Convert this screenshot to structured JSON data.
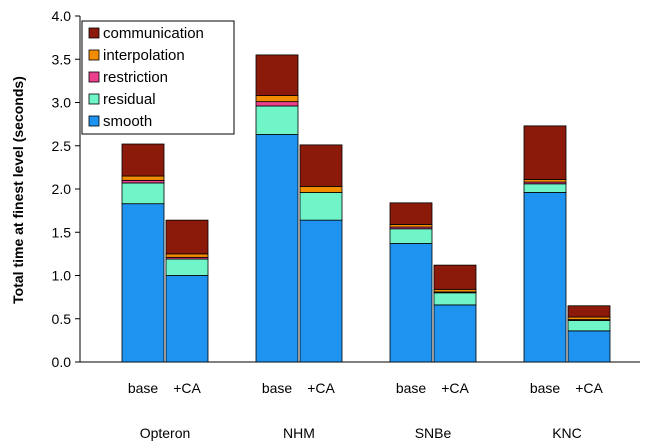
{
  "chart_data": {
    "type": "bar",
    "stacked": true,
    "ylabel": "Total time at finest level (seconds)",
    "ylim": [
      0,
      4.0
    ],
    "yticks": [
      "0.0",
      "0.5",
      "1.0",
      "1.5",
      "2.0",
      "2.5",
      "3.0",
      "3.5",
      "4.0"
    ],
    "groups": [
      {
        "name": "Opteron",
        "bars": [
          {
            "label": "base",
            "values": {
              "smooth": 1.83,
              "residual": 0.24,
              "restriction": 0.03,
              "interpolation": 0.05,
              "communication": 0.37
            }
          },
          {
            "label": "+CA",
            "values": {
              "smooth": 1.0,
              "residual": 0.19,
              "restriction": 0.02,
              "interpolation": 0.04,
              "communication": 0.39
            }
          }
        ]
      },
      {
        "name": "NHM",
        "bars": [
          {
            "label": "base",
            "values": {
              "smooth": 2.63,
              "residual": 0.33,
              "restriction": 0.05,
              "interpolation": 0.07,
              "communication": 0.47
            }
          },
          {
            "label": "+CA",
            "values": {
              "smooth": 1.64,
              "residual": 0.32,
              "restriction": 0.0,
              "interpolation": 0.07,
              "communication": 0.48
            }
          }
        ]
      },
      {
        "name": "SNBe",
        "bars": [
          {
            "label": "base",
            "values": {
              "smooth": 1.37,
              "residual": 0.17,
              "restriction": 0.02,
              "interpolation": 0.03,
              "communication": 0.25
            }
          },
          {
            "label": "+CA",
            "values": {
              "smooth": 0.66,
              "residual": 0.14,
              "restriction": 0.01,
              "interpolation": 0.03,
              "communication": 0.28
            }
          }
        ]
      },
      {
        "name": "KNC",
        "bars": [
          {
            "label": "base",
            "values": {
              "smooth": 1.96,
              "residual": 0.1,
              "restriction": 0.02,
              "interpolation": 0.03,
              "communication": 0.62
            }
          },
          {
            "label": "+CA",
            "values": {
              "smooth": 0.36,
              "residual": 0.12,
              "restriction": 0.01,
              "interpolation": 0.03,
              "communication": 0.13
            }
          }
        ]
      }
    ],
    "series": [
      {
        "name": "communication",
        "color": "#8b1a0a"
      },
      {
        "name": "interpolation",
        "color": "#f28c00"
      },
      {
        "name": "restriction",
        "color": "#ec3f8c"
      },
      {
        "name": "residual",
        "color": "#6ff5c7"
      },
      {
        "name": "smooth",
        "color": "#1f93f0"
      }
    ],
    "stack_order": [
      "smooth",
      "residual",
      "restriction",
      "interpolation",
      "communication"
    ],
    "legend": "top-left",
    "grid": false
  }
}
